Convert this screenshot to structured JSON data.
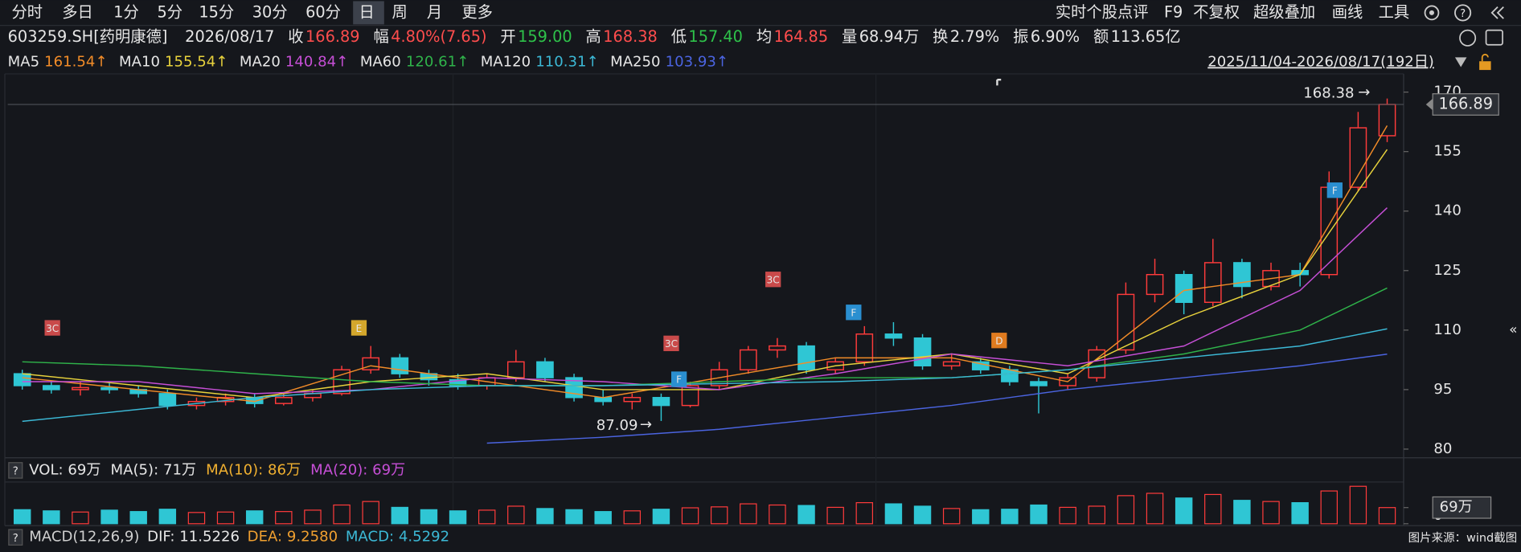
{
  "toolbar": {
    "periods": [
      "分时",
      "多日",
      "1分",
      "5分",
      "15分",
      "30分",
      "60分",
      "日",
      "周",
      "月",
      "更多"
    ],
    "selected": 7,
    "tools": [
      "实时个股点评",
      "F9",
      "不复权",
      "超级叠加",
      "画线",
      "工具"
    ],
    "help_icon": "?"
  },
  "quote": {
    "security": "603259.SH[药明康德]",
    "date": "2026/08/17",
    "items": [
      {
        "label": "收",
        "value": "166.89",
        "color": "#ff4d4d"
      },
      {
        "label": "幅",
        "value": "4.80%(7.65)",
        "color": "#ff4d4d"
      },
      {
        "label": "开",
        "value": "159.00",
        "color": "#2ec24a"
      },
      {
        "label": "高",
        "value": "168.38",
        "color": "#ff4d4d"
      },
      {
        "label": "低",
        "value": "157.40",
        "color": "#2ec24a"
      },
      {
        "label": "均",
        "value": "164.85",
        "color": "#ff4d4d"
      },
      {
        "label": "量",
        "value": "68.94万",
        "color": "#e6e6e6"
      },
      {
        "label": "换",
        "value": "2.79%",
        "color": "#e6e6e6"
      },
      {
        "label": "振",
        "value": "6.90%",
        "color": "#e6e6e6"
      },
      {
        "label": "额",
        "value": "113.65亿",
        "color": "#e6e6e6"
      }
    ]
  },
  "range_label": "2025/11/04-2026/08/17(192日)",
  "chart_data": {
    "type": "candlestick",
    "up_color": "#ff3b3b",
    "down_color": "#2fc6d4",
    "candles": [
      [
        99,
        100,
        95,
        96
      ],
      [
        96,
        97,
        94,
        95
      ],
      [
        95,
        97,
        93.5,
        95.5
      ],
      [
        95.5,
        97,
        94,
        95
      ],
      [
        95,
        96,
        93,
        94
      ],
      [
        94,
        95,
        90,
        91
      ],
      [
        91,
        93,
        90,
        92
      ],
      [
        92,
        94,
        91,
        93
      ],
      [
        93,
        94,
        90.5,
        91.5
      ],
      [
        91.5,
        94,
        91,
        93
      ],
      [
        93,
        95,
        92,
        94
      ],
      [
        94,
        101,
        93.5,
        100
      ],
      [
        100,
        106,
        99,
        103
      ],
      [
        103,
        104,
        98,
        99
      ],
      [
        99,
        100,
        96,
        97.5
      ],
      [
        97.5,
        99,
        95,
        96
      ],
      [
        96,
        99,
        95,
        98
      ],
      [
        98,
        105,
        97,
        102
      ],
      [
        102,
        103,
        97,
        98
      ],
      [
        98,
        99,
        92,
        93
      ],
      [
        93,
        95,
        91,
        92
      ],
      [
        92,
        94,
        90,
        93
      ],
      [
        93,
        94,
        87.09,
        91
      ],
      [
        91,
        97,
        90.5,
        96
      ],
      [
        96,
        102,
        95,
        100
      ],
      [
        100,
        106,
        99,
        105
      ],
      [
        105,
        108,
        103,
        106
      ],
      [
        106,
        107,
        99,
        100
      ],
      [
        100,
        103,
        99,
        102
      ],
      [
        102,
        111,
        101,
        109
      ],
      [
        109,
        112,
        106,
        108
      ],
      [
        108,
        109,
        100,
        101
      ],
      [
        101,
        104,
        100,
        102
      ],
      [
        102,
        103,
        99,
        100
      ],
      [
        100,
        101,
        96,
        97
      ],
      [
        97,
        98,
        89,
        96
      ],
      [
        96,
        99,
        95,
        98
      ],
      [
        98,
        106,
        97,
        105
      ],
      [
        105,
        122,
        104,
        119
      ],
      [
        119,
        128,
        117,
        124
      ],
      [
        124,
        125,
        114,
        117
      ],
      [
        117,
        133,
        116,
        127
      ],
      [
        127,
        128,
        118,
        121
      ],
      [
        121,
        127,
        120,
        125
      ],
      [
        125,
        127,
        121,
        124
      ],
      [
        124,
        150,
        123,
        146
      ],
      [
        146,
        165,
        145,
        161
      ],
      [
        159,
        168.38,
        157.4,
        166.89
      ]
    ],
    "ma_x": [
      0,
      4,
      8,
      12,
      16,
      20,
      24,
      28,
      32,
      36,
      40,
      44,
      47
    ],
    "series": [
      {
        "name": "MA5",
        "label": "161.54↑",
        "color": "#f28c28",
        "values": [
          98,
          95,
          92,
          101,
          97,
          93,
          98,
          103,
          103,
          97,
          120,
          124,
          161.54
        ]
      },
      {
        "name": "MA10",
        "label": "155.54↑",
        "color": "#e8d23c",
        "values": [
          99,
          96,
          93,
          97,
          99,
          95,
          95,
          101,
          104,
          99,
          113,
          124,
          155.54
        ]
      },
      {
        "name": "MA20",
        "label": "140.84↑",
        "color": "#c64fd6",
        "values": [
          97,
          97,
          94,
          95,
          98,
          97,
          95,
          99,
          104,
          101,
          106,
          120,
          140.84
        ]
      },
      {
        "name": "MA60",
        "label": "120.61↑",
        "color": "#2fb34a",
        "values": [
          102,
          101,
          99,
          97,
          96,
          96,
          97,
          98,
          98,
          100,
          104,
          110,
          120.61
        ]
      },
      {
        "name": "MA120",
        "label": "110.31↑",
        "color": "#3cb9d6",
        "values": [
          87,
          90,
          93,
          95,
          96,
          96,
          96.5,
          97,
          98,
          100,
          103,
          106,
          110.31
        ]
      },
      {
        "name": "MA250",
        "label": "103.93↑",
        "color": "#4b64e0",
        "values": [
          null,
          null,
          null,
          null,
          81.5,
          83,
          85,
          88,
          91,
          95,
          98,
          101,
          103.93
        ]
      }
    ],
    "ylim": [
      78.3,
      174.6
    ],
    "yticks": [
      80,
      95,
      110,
      125,
      140,
      155,
      170
    ],
    "last_price": 166.89,
    "high_label": 168.38,
    "low_label": 87.09,
    "arrow": "→",
    "events": [
      {
        "label": "3C",
        "color": "#c94a4a"
      },
      {
        "label": "E",
        "color": "#d4a72c"
      },
      {
        "label": "3C",
        "color": "#c94a4a"
      },
      {
        "label": "F",
        "color": "#2a8fd0"
      },
      {
        "label": "3C",
        "color": "#c94a4a"
      },
      {
        "label": "F",
        "color": "#2a8fd0"
      },
      {
        "label": "D",
        "color": "#e07b1f"
      },
      {
        "label": "F",
        "color": "#2a8fd0"
      }
    ]
  },
  "volume": {
    "header": [
      {
        "text": "VOL: 69万",
        "color": "#e6e6e6"
      },
      {
        "text": "MA(5): 71万",
        "color": "#e6e6e6"
      },
      {
        "text": "MA(10): 86万",
        "color": "#f0b030"
      },
      {
        "text": "MA(20): 69万",
        "color": "#c64fd6"
      }
    ],
    "values": [
      60,
      55,
      50,
      58,
      52,
      62,
      48,
      50,
      55,
      52,
      58,
      80,
      95,
      70,
      60,
      55,
      58,
      75,
      65,
      60,
      52,
      55,
      62,
      68,
      72,
      85,
      80,
      78,
      70,
      90,
      85,
      75,
      65,
      60,
      62,
      80,
      70,
      75,
      120,
      130,
      110,
      125,
      100,
      95,
      90,
      140,
      160,
      69
    ],
    "ylim": [
      0,
      170
    ],
    "yticks": [
      0,
      {
        "value": 69,
        "label": "69万"
      }
    ]
  },
  "macd": {
    "header": [
      {
        "text": "MACD(12,26,9)",
        "color": "#cfcfcf"
      },
      {
        "text": "DIF: 11.5226",
        "color": "#e6e6e6"
      },
      {
        "text": "DEA: 9.2580",
        "color": "#f0a030"
      },
      {
        "text": "MACD: 4.5292",
        "color": "#3cb9d6"
      }
    ]
  },
  "source": "图片来源：wind截图"
}
